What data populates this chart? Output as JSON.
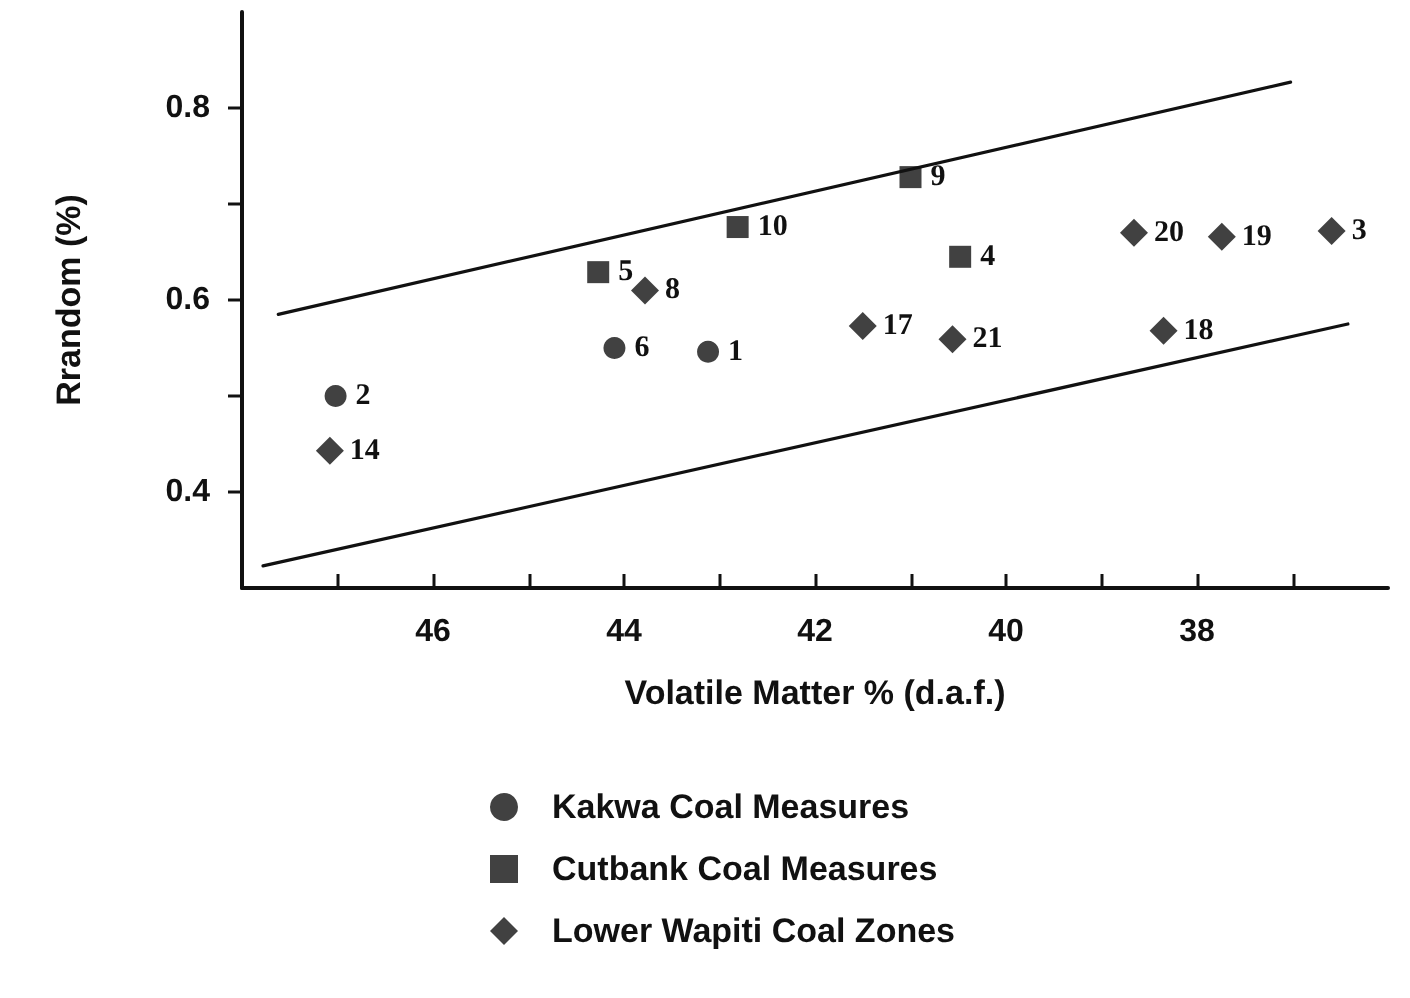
{
  "chart_data": {
    "type": "scatter",
    "xlabel": "Volatile Matter % (d.a.f.)",
    "ylabel": "Rrandom (%)",
    "xlim": [
      48,
      36
    ],
    "xticks": [
      {
        "value": 47,
        "label": null
      },
      46,
      {
        "value": 45,
        "label": null
      },
      44,
      {
        "value": 43,
        "label": null
      },
      42,
      {
        "value": 41,
        "label": null
      },
      40,
      {
        "value": 39,
        "label": null
      },
      38,
      {
        "value": 37,
        "label": null
      }
    ],
    "ylim": [
      0.3,
      0.9
    ],
    "yticks": [
      0.4,
      {
        "value": 0.5,
        "label": null
      },
      0.6,
      {
        "value": 0.7,
        "label": null
      },
      0.8
    ],
    "grid": false,
    "legend": "bottom",
    "series": [
      {
        "name": "Kakwa Coal Measures",
        "color": "#111111",
        "marker": "circle",
        "x": [
          47.02,
          44.1,
          43.12
        ],
        "values": [
          0.5,
          0.55,
          0.546
        ]
      },
      {
        "name": "Cutbank Coal Measures",
        "color": "#111111",
        "marker": "square",
        "x": [
          44.27,
          42.81,
          41.0,
          40.48
        ],
        "values": [
          0.629,
          0.676,
          0.728,
          0.645
        ]
      },
      {
        "name": "Lower Wapiti Coal Zones",
        "color": "#111111",
        "marker": "diamond",
        "x": [
          47.08,
          43.78,
          41.5,
          40.56,
          38.66,
          38.35,
          37.74,
          36.59
        ],
        "values": [
          0.443,
          0.61,
          0.573,
          0.559,
          0.67,
          0.568,
          0.666,
          0.672
        ]
      },
      {
        "type": "line",
        "color": "#111111",
        "marker": "none",
        "line_style": "solid",
        "x": [
          47.62,
          37.02
        ],
        "values": [
          0.585,
          0.827
        ]
      },
      {
        "type": "line",
        "color": "#111111",
        "marker": "none",
        "line_style": "solid",
        "x": [
          47.78,
          36.42
        ],
        "values": [
          0.323,
          0.575
        ]
      }
    ],
    "annotations": [
      {
        "text": "2",
        "x": 47.02,
        "y": 0.5
      },
      {
        "text": "6",
        "x": 44.1,
        "y": 0.55
      },
      {
        "text": "1",
        "x": 43.12,
        "y": 0.546
      },
      {
        "text": "5",
        "x": 44.27,
        "y": 0.629
      },
      {
        "text": "10",
        "x": 42.81,
        "y": 0.676
      },
      {
        "text": "9",
        "x": 41.0,
        "y": 0.728
      },
      {
        "text": "4",
        "x": 40.48,
        "y": 0.645
      },
      {
        "text": "14",
        "x": 47.08,
        "y": 0.443
      },
      {
        "text": "8",
        "x": 43.78,
        "y": 0.61
      },
      {
        "text": "17",
        "x": 41.5,
        "y": 0.573
      },
      {
        "text": "21",
        "x": 40.56,
        "y": 0.559
      },
      {
        "text": "20",
        "x": 38.66,
        "y": 0.67
      },
      {
        "text": "18",
        "x": 38.35,
        "y": 0.568
      },
      {
        "text": "19",
        "x": 37.74,
        "y": 0.666
      },
      {
        "text": "3",
        "x": 36.59,
        "y": 0.672
      }
    ]
  }
}
